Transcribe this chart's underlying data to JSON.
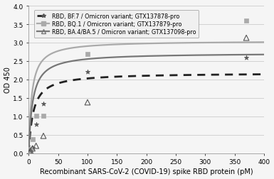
{
  "title": "",
  "xlabel": "Recombinant SARS-CoV-2 (COVID-19) spike RBD protein (pM)",
  "ylabel": "OD 450",
  "xlim": [
    0,
    400
  ],
  "ylim": [
    0,
    4
  ],
  "yticks": [
    0,
    0.5,
    1,
    1.5,
    2,
    2.5,
    3,
    3.5,
    4
  ],
  "xticks": [
    0,
    50,
    100,
    150,
    200,
    250,
    300,
    350,
    400
  ],
  "series": [
    {
      "name": "RBD, BF.7 / Omicron variant; GTX137878-pro",
      "marker": "*",
      "color": "#555555",
      "line_style": "--",
      "line_color": "#222222",
      "points_x": [
        1.56,
        3.13,
        6.25,
        12.5,
        25,
        100,
        370
      ],
      "points_y": [
        0.06,
        0.08,
        0.14,
        0.78,
        1.35,
        2.2,
        2.6
      ],
      "curve_Vmax": 2.18,
      "curve_Km": 7.5
    },
    {
      "name": "RBD, BQ.1 / Omicron variant; GTX137879-pro",
      "marker": "s",
      "color": "#aaaaaa",
      "line_style": "-",
      "line_color": "#aaaaaa",
      "points_x": [
        1.56,
        3.13,
        6.25,
        12.5,
        25,
        100,
        370
      ],
      "points_y": [
        0.06,
        0.1,
        0.38,
        1.02,
        1.02,
        2.7,
        3.6
      ],
      "curve_Vmax": 3.05,
      "curve_Km": 5.0
    },
    {
      "name": "RBD, BA.4/BA.5 / Omicron variant; GTX137098-pro",
      "marker": "^",
      "color": "#777777",
      "line_style": "-",
      "line_color": "#777777",
      "points_x": [
        1.56,
        3.13,
        6.25,
        12.5,
        25,
        100,
        370
      ],
      "points_y": [
        0.04,
        0.06,
        0.13,
        0.2,
        0.47,
        1.38,
        3.13
      ],
      "curve_Vmax": 2.72,
      "curve_Km": 6.5
    }
  ],
  "background_color": "#f5f5f5",
  "grid_color": "#cccccc",
  "legend_fontsize": 5.8,
  "axis_fontsize": 7.0,
  "tick_fontsize": 6.5
}
